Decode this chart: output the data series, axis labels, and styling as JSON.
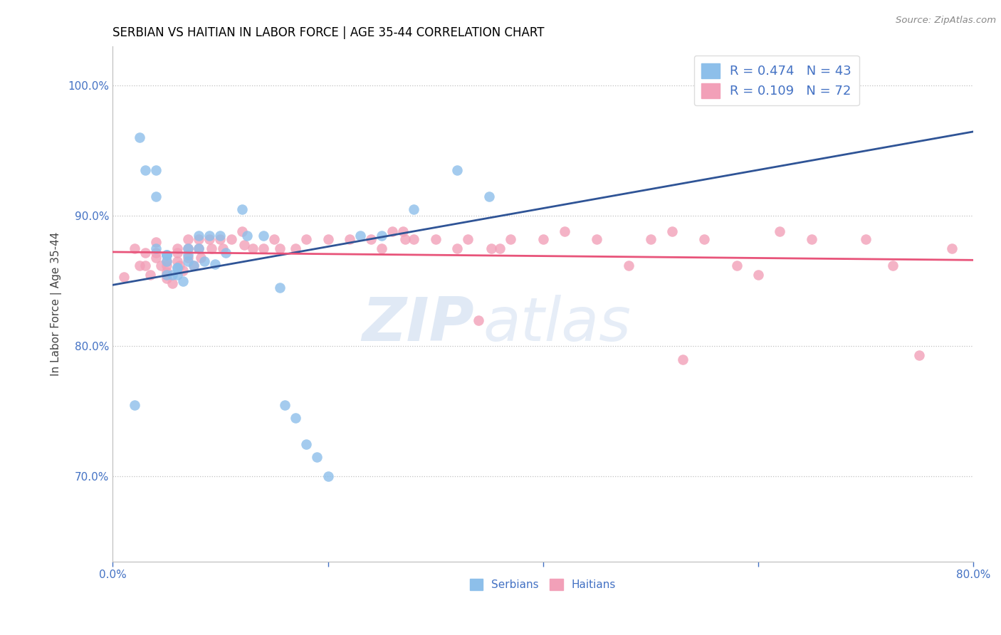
{
  "title": "SERBIAN VS HAITIAN IN LABOR FORCE | AGE 35-44 CORRELATION CHART",
  "source_text": "Source: ZipAtlas.com",
  "ylabel": "In Labor Force | Age 35-44",
  "legend_label_serbian": "Serbians",
  "legend_label_haitian": "Haitians",
  "R_serbian": 0.474,
  "N_serbian": 43,
  "R_haitian": 0.109,
  "N_haitian": 72,
  "watermark_zip": "ZIP",
  "watermark_atlas": "atlas",
  "xlim": [
    0.0,
    0.8
  ],
  "ylim": [
    0.635,
    1.03
  ],
  "yticks": [
    0.7,
    0.8,
    0.9,
    1.0
  ],
  "ytick_labels": [
    "70.0%",
    "80.0%",
    "90.0%",
    "100.0%"
  ],
  "xticks": [
    0.0,
    0.2,
    0.4,
    0.6,
    0.8
  ],
  "xtick_labels": [
    "0.0%",
    "",
    "",
    "",
    "80.0%"
  ],
  "color_serbian": "#8dbfea",
  "color_haitian": "#f2a0b8",
  "color_line_serbian": "#2f5496",
  "color_line_haitian": "#e8547a",
  "color_axis_tick": "#4472c4",
  "serbian_x": [
    0.02,
    0.025,
    0.03,
    0.04,
    0.04,
    0.04,
    0.05,
    0.05,
    0.05,
    0.05,
    0.05,
    0.055,
    0.06,
    0.06,
    0.06,
    0.065,
    0.07,
    0.07,
    0.07,
    0.075,
    0.08,
    0.08,
    0.085,
    0.09,
    0.095,
    0.1,
    0.105,
    0.12,
    0.125,
    0.14,
    0.155,
    0.16,
    0.17,
    0.18,
    0.19,
    0.2,
    0.23,
    0.25,
    0.28,
    0.32,
    0.35,
    0.6,
    0.65
  ],
  "serbian_y": [
    0.755,
    0.96,
    0.935,
    0.935,
    0.915,
    0.875,
    0.87,
    0.87,
    0.87,
    0.865,
    0.855,
    0.855,
    0.86,
    0.86,
    0.855,
    0.85,
    0.875,
    0.87,
    0.865,
    0.862,
    0.885,
    0.875,
    0.865,
    0.885,
    0.863,
    0.885,
    0.872,
    0.905,
    0.885,
    0.885,
    0.845,
    0.755,
    0.745,
    0.725,
    0.715,
    0.7,
    0.885,
    0.885,
    0.905,
    0.935,
    0.915,
    1.0,
    1.0
  ],
  "haitian_x": [
    0.01,
    0.02,
    0.025,
    0.03,
    0.03,
    0.035,
    0.04,
    0.04,
    0.04,
    0.045,
    0.05,
    0.05,
    0.05,
    0.05,
    0.05,
    0.055,
    0.06,
    0.06,
    0.06,
    0.062,
    0.065,
    0.07,
    0.07,
    0.07,
    0.075,
    0.08,
    0.08,
    0.082,
    0.09,
    0.092,
    0.1,
    0.102,
    0.11,
    0.12,
    0.122,
    0.13,
    0.14,
    0.15,
    0.155,
    0.17,
    0.18,
    0.2,
    0.22,
    0.24,
    0.25,
    0.26,
    0.27,
    0.272,
    0.28,
    0.3,
    0.32,
    0.33,
    0.34,
    0.352,
    0.36,
    0.37,
    0.4,
    0.42,
    0.45,
    0.48,
    0.5,
    0.52,
    0.53,
    0.55,
    0.58,
    0.6,
    0.62,
    0.65,
    0.7,
    0.725,
    0.75,
    0.78
  ],
  "haitian_y": [
    0.853,
    0.875,
    0.862,
    0.872,
    0.862,
    0.855,
    0.88,
    0.872,
    0.868,
    0.862,
    0.865,
    0.862,
    0.857,
    0.855,
    0.852,
    0.848,
    0.875,
    0.872,
    0.865,
    0.862,
    0.858,
    0.882,
    0.875,
    0.868,
    0.862,
    0.882,
    0.875,
    0.868,
    0.882,
    0.875,
    0.882,
    0.875,
    0.882,
    0.888,
    0.878,
    0.875,
    0.875,
    0.882,
    0.875,
    0.875,
    0.882,
    0.882,
    0.882,
    0.882,
    0.875,
    0.888,
    0.888,
    0.882,
    0.882,
    0.882,
    0.875,
    0.882,
    0.82,
    0.875,
    0.875,
    0.882,
    0.882,
    0.888,
    0.882,
    0.862,
    0.882,
    0.888,
    0.79,
    0.882,
    0.862,
    0.855,
    0.888,
    0.882,
    0.882,
    0.862,
    0.793,
    0.875
  ]
}
